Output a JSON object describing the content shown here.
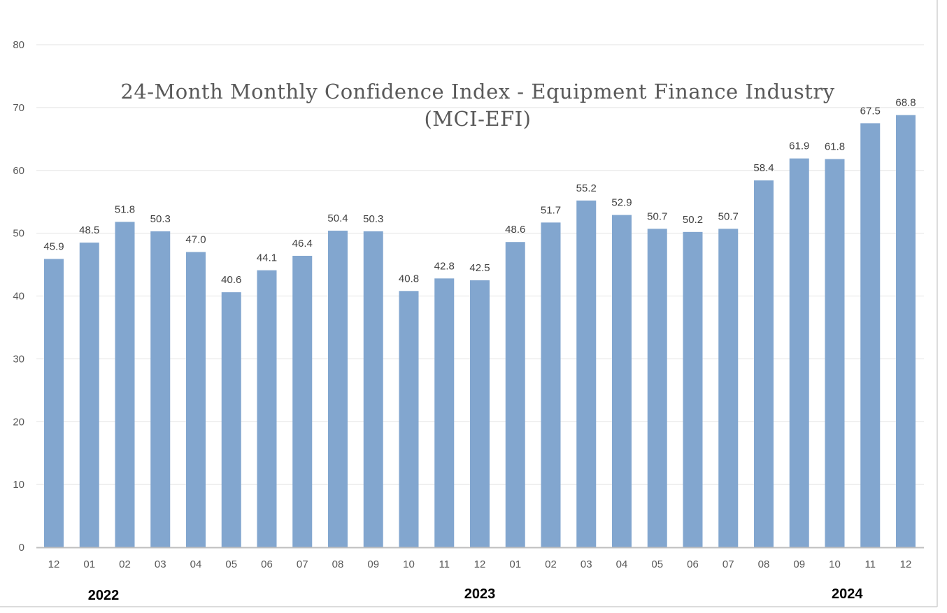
{
  "chart_data": {
    "type": "bar",
    "title": "24-Month Monthly Confidence Index - Equipment Finance Industry (MCI-EFI)",
    "title_lines": [
      "24-Month Monthly Confidence Index - Equipment Finance Industry",
      "(MCI-EFI)"
    ],
    "xlabel": "",
    "ylabel": "",
    "ylim": [
      0,
      80
    ],
    "yticks": [
      0,
      10,
      20,
      30,
      40,
      50,
      60,
      70,
      80
    ],
    "grid": true,
    "categories": [
      "12",
      "01",
      "02",
      "03",
      "04",
      "05",
      "06",
      "07",
      "08",
      "09",
      "10",
      "11",
      "12",
      "01",
      "02",
      "03",
      "04",
      "05",
      "06",
      "07",
      "08",
      "09",
      "10",
      "11",
      "12"
    ],
    "values": [
      45.9,
      48.5,
      51.8,
      50.3,
      47.0,
      40.6,
      44.1,
      46.4,
      50.4,
      50.3,
      40.8,
      42.8,
      42.5,
      48.6,
      51.7,
      55.2,
      52.9,
      50.7,
      50.2,
      50.7,
      58.4,
      61.9,
      61.8,
      67.5,
      68.8
    ],
    "data_labels": [
      "45.9",
      "48.5",
      "51.8",
      "50.3",
      "47.0",
      "40.6",
      "44.1",
      "46.4",
      "50.4",
      "50.3",
      "40.8",
      "42.8",
      "42.5",
      "48.6",
      "51.7",
      "55.2",
      "52.9",
      "50.7",
      "50.2",
      "50.7",
      "58.4",
      "61.9",
      "61.8",
      "67.5",
      "68.8"
    ],
    "year_labels": [
      {
        "text": "2022",
        "category_index": 1.4
      },
      {
        "text": "2023",
        "category_index": 12
      },
      {
        "text": "2024",
        "category_index": 22.35
      }
    ],
    "bar_color": "#82A6CF",
    "grid_color": "#E3E3E3",
    "axis_color": "#BFBFBF"
  }
}
